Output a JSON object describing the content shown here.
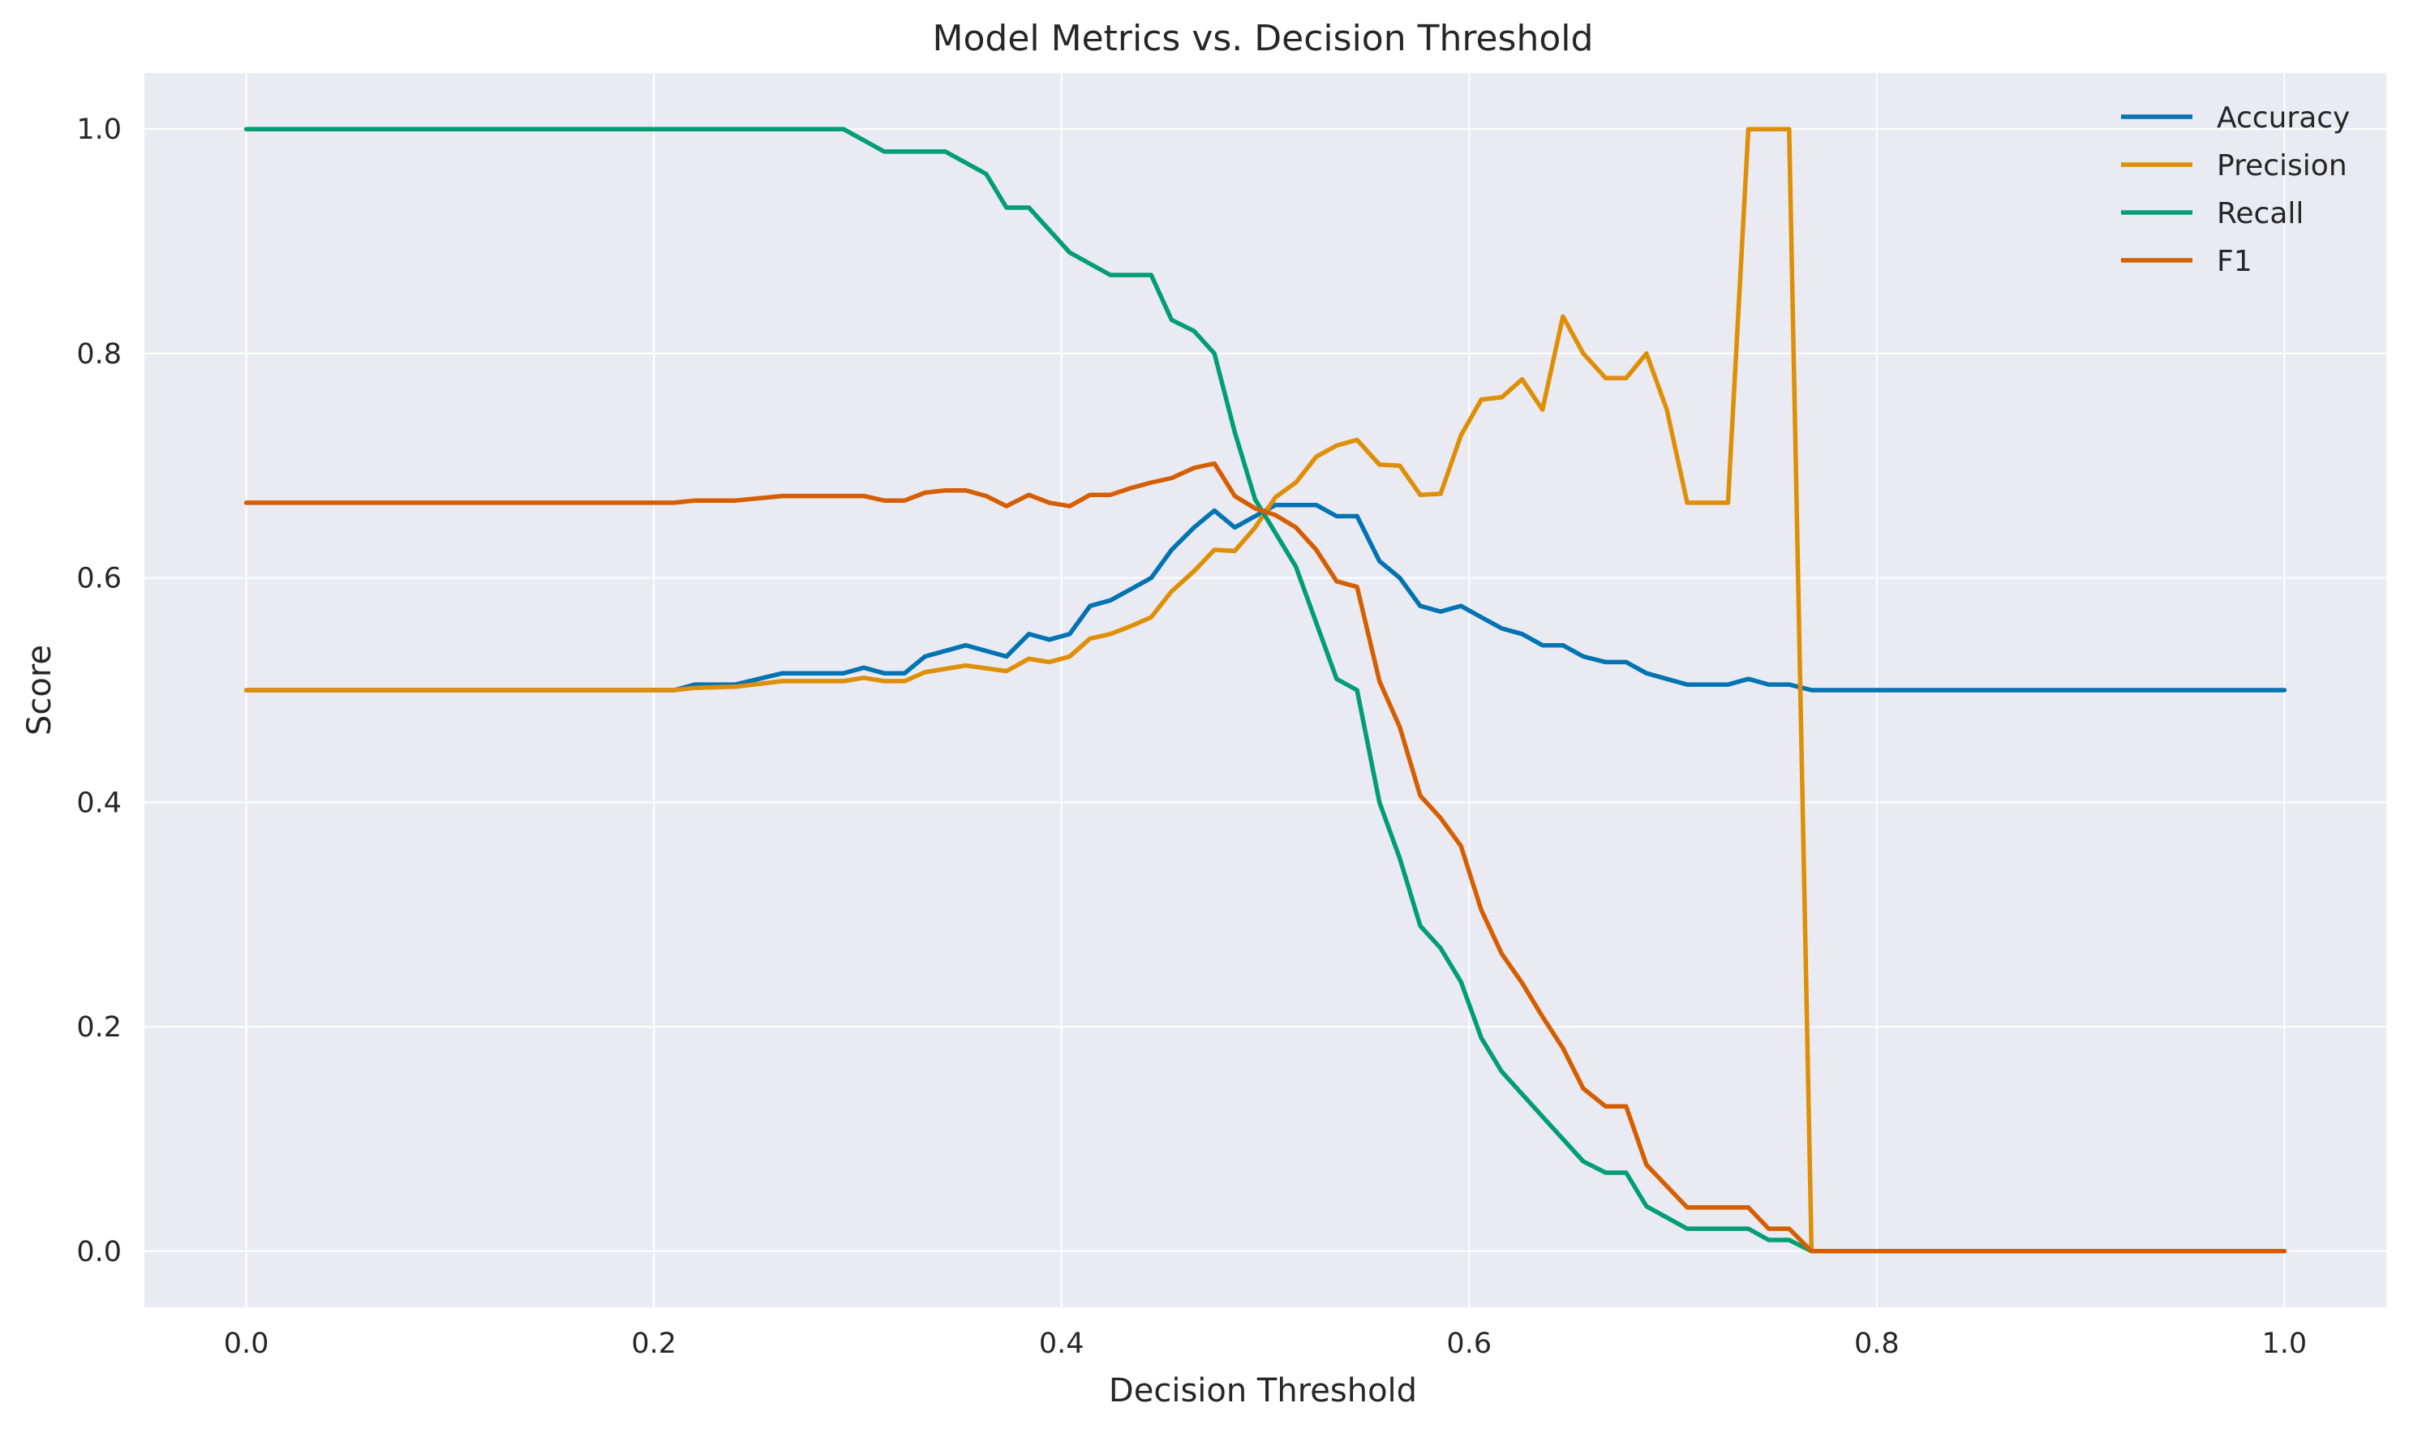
{
  "chart_data": {
    "type": "line",
    "title": "Model Metrics vs. Decision Threshold",
    "xlabel": "Decision Threshold",
    "ylabel": "Score",
    "xlim": [
      -0.05,
      1.05
    ],
    "ylim": [
      -0.05,
      1.05
    ],
    "xticks": [
      0.0,
      0.2,
      0.4,
      0.6,
      0.8,
      1.0
    ],
    "xtick_labels": [
      "0.0",
      "0.2",
      "0.4",
      "0.6",
      "0.8",
      "1.0"
    ],
    "yticks": [
      0.0,
      0.2,
      0.4,
      0.6,
      0.8,
      1.0
    ],
    "ytick_labels": [
      "0.0",
      "0.2",
      "0.4",
      "0.6",
      "0.8",
      "1.0"
    ],
    "grid": true,
    "legend_position": "top-right",
    "series": [
      {
        "name": "Accuracy",
        "color": "#0173b2",
        "points": [
          [
            0.0,
            0.5
          ],
          [
            0.21,
            0.5
          ],
          [
            0.22,
            0.505
          ],
          [
            0.24,
            0.505
          ],
          [
            0.263,
            0.515
          ],
          [
            0.293,
            0.515
          ],
          [
            0.303,
            0.52
          ],
          [
            0.313,
            0.515
          ],
          [
            0.323,
            0.515
          ],
          [
            0.333,
            0.53
          ],
          [
            0.353,
            0.54
          ],
          [
            0.363,
            0.535
          ],
          [
            0.373,
            0.53
          ],
          [
            0.384,
            0.55
          ],
          [
            0.394,
            0.545
          ],
          [
            0.404,
            0.55
          ],
          [
            0.414,
            0.575
          ],
          [
            0.424,
            0.58
          ],
          [
            0.434,
            0.59
          ],
          [
            0.444,
            0.6
          ],
          [
            0.454,
            0.625
          ],
          [
            0.465,
            0.645
          ],
          [
            0.475,
            0.66
          ],
          [
            0.485,
            0.645
          ],
          [
            0.495,
            0.655
          ],
          [
            0.505,
            0.665
          ],
          [
            0.525,
            0.665
          ],
          [
            0.535,
            0.655
          ],
          [
            0.545,
            0.655
          ],
          [
            0.556,
            0.615
          ],
          [
            0.566,
            0.6
          ],
          [
            0.576,
            0.575
          ],
          [
            0.586,
            0.57
          ],
          [
            0.596,
            0.575
          ],
          [
            0.606,
            0.565
          ],
          [
            0.616,
            0.555
          ],
          [
            0.626,
            0.55
          ],
          [
            0.636,
            0.54
          ],
          [
            0.646,
            0.54
          ],
          [
            0.656,
            0.53
          ],
          [
            0.667,
            0.525
          ],
          [
            0.677,
            0.525
          ],
          [
            0.687,
            0.515
          ],
          [
            0.697,
            0.51
          ],
          [
            0.707,
            0.505
          ],
          [
            0.727,
            0.505
          ],
          [
            0.737,
            0.51
          ],
          [
            0.747,
            0.505
          ],
          [
            0.757,
            0.505
          ],
          [
            0.768,
            0.5
          ],
          [
            1.0,
            0.5
          ]
        ]
      },
      {
        "name": "Precision",
        "color": "#de8f05",
        "points": [
          [
            0.0,
            0.5
          ],
          [
            0.21,
            0.5
          ],
          [
            0.22,
            0.502
          ],
          [
            0.24,
            0.503
          ],
          [
            0.263,
            0.508
          ],
          [
            0.293,
            0.508
          ],
          [
            0.303,
            0.511
          ],
          [
            0.313,
            0.508
          ],
          [
            0.323,
            0.508
          ],
          [
            0.333,
            0.516
          ],
          [
            0.353,
            0.522
          ],
          [
            0.373,
            0.517
          ],
          [
            0.384,
            0.528
          ],
          [
            0.394,
            0.525
          ],
          [
            0.404,
            0.53
          ],
          [
            0.414,
            0.546
          ],
          [
            0.424,
            0.55
          ],
          [
            0.434,
            0.557
          ],
          [
            0.444,
            0.565
          ],
          [
            0.454,
            0.588
          ],
          [
            0.465,
            0.606
          ],
          [
            0.475,
            0.625
          ],
          [
            0.485,
            0.624
          ],
          [
            0.495,
            0.645
          ],
          [
            0.505,
            0.672
          ],
          [
            0.515,
            0.685
          ],
          [
            0.525,
            0.708
          ],
          [
            0.535,
            0.718
          ],
          [
            0.545,
            0.723
          ],
          [
            0.556,
            0.701
          ],
          [
            0.566,
            0.7
          ],
          [
            0.576,
            0.674
          ],
          [
            0.586,
            0.675
          ],
          [
            0.596,
            0.727
          ],
          [
            0.606,
            0.759
          ],
          [
            0.616,
            0.761
          ],
          [
            0.626,
            0.777
          ],
          [
            0.636,
            0.75
          ],
          [
            0.646,
            0.833
          ],
          [
            0.656,
            0.8
          ],
          [
            0.667,
            0.778
          ],
          [
            0.677,
            0.778
          ],
          [
            0.687,
            0.8
          ],
          [
            0.697,
            0.75
          ],
          [
            0.707,
            0.667
          ],
          [
            0.727,
            0.667
          ],
          [
            0.737,
            1.0
          ],
          [
            0.757,
            1.0
          ],
          [
            0.768,
            0.0
          ],
          [
            1.0,
            0.0
          ]
        ]
      },
      {
        "name": "Recall",
        "color": "#029e73",
        "points": [
          [
            0.0,
            1.0
          ],
          [
            0.293,
            1.0
          ],
          [
            0.313,
            0.98
          ],
          [
            0.343,
            0.98
          ],
          [
            0.363,
            0.96
          ],
          [
            0.373,
            0.93
          ],
          [
            0.384,
            0.93
          ],
          [
            0.404,
            0.89
          ],
          [
            0.424,
            0.87
          ],
          [
            0.444,
            0.87
          ],
          [
            0.454,
            0.83
          ],
          [
            0.465,
            0.82
          ],
          [
            0.475,
            0.8
          ],
          [
            0.485,
            0.73
          ],
          [
            0.495,
            0.67
          ],
          [
            0.505,
            0.64
          ],
          [
            0.515,
            0.61
          ],
          [
            0.525,
            0.56
          ],
          [
            0.535,
            0.51
          ],
          [
            0.545,
            0.5
          ],
          [
            0.556,
            0.4
          ],
          [
            0.566,
            0.35
          ],
          [
            0.576,
            0.29
          ],
          [
            0.586,
            0.27
          ],
          [
            0.596,
            0.24
          ],
          [
            0.606,
            0.19
          ],
          [
            0.616,
            0.16
          ],
          [
            0.626,
            0.14
          ],
          [
            0.636,
            0.12
          ],
          [
            0.646,
            0.1
          ],
          [
            0.656,
            0.08
          ],
          [
            0.667,
            0.07
          ],
          [
            0.677,
            0.07
          ],
          [
            0.687,
            0.04
          ],
          [
            0.697,
            0.03
          ],
          [
            0.707,
            0.02
          ],
          [
            0.737,
            0.02
          ],
          [
            0.747,
            0.01
          ],
          [
            0.757,
            0.01
          ],
          [
            0.768,
            0.0
          ],
          [
            1.0,
            0.0
          ]
        ]
      },
      {
        "name": "F1",
        "color": "#d55e00",
        "points": [
          [
            0.0,
            0.667
          ],
          [
            0.21,
            0.667
          ],
          [
            0.22,
            0.669
          ],
          [
            0.24,
            0.669
          ],
          [
            0.263,
            0.673
          ],
          [
            0.303,
            0.673
          ],
          [
            0.313,
            0.669
          ],
          [
            0.323,
            0.669
          ],
          [
            0.333,
            0.676
          ],
          [
            0.343,
            0.678
          ],
          [
            0.353,
            0.678
          ],
          [
            0.363,
            0.673
          ],
          [
            0.373,
            0.664
          ],
          [
            0.384,
            0.674
          ],
          [
            0.394,
            0.667
          ],
          [
            0.404,
            0.664
          ],
          [
            0.414,
            0.674
          ],
          [
            0.424,
            0.674
          ],
          [
            0.434,
            0.68
          ],
          [
            0.444,
            0.685
          ],
          [
            0.454,
            0.689
          ],
          [
            0.465,
            0.698
          ],
          [
            0.475,
            0.702
          ],
          [
            0.485,
            0.673
          ],
          [
            0.495,
            0.662
          ],
          [
            0.505,
            0.656
          ],
          [
            0.515,
            0.645
          ],
          [
            0.525,
            0.625
          ],
          [
            0.535,
            0.597
          ],
          [
            0.545,
            0.592
          ],
          [
            0.556,
            0.508
          ],
          [
            0.566,
            0.467
          ],
          [
            0.576,
            0.406
          ],
          [
            0.586,
            0.386
          ],
          [
            0.596,
            0.361
          ],
          [
            0.606,
            0.304
          ],
          [
            0.616,
            0.265
          ],
          [
            0.626,
            0.239
          ],
          [
            0.636,
            0.209
          ],
          [
            0.646,
            0.181
          ],
          [
            0.656,
            0.145
          ],
          [
            0.667,
            0.129
          ],
          [
            0.677,
            0.129
          ],
          [
            0.687,
            0.077
          ],
          [
            0.697,
            0.058
          ],
          [
            0.707,
            0.039
          ],
          [
            0.737,
            0.039
          ],
          [
            0.747,
            0.02
          ],
          [
            0.757,
            0.02
          ],
          [
            0.768,
            0.0
          ],
          [
            1.0,
            0.0
          ]
        ]
      }
    ]
  }
}
